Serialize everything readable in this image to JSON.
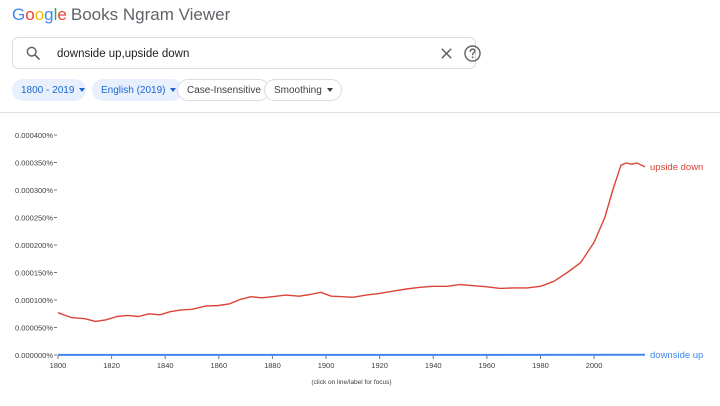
{
  "app": {
    "logo_letters": [
      {
        "ch": "G",
        "color": "#4285f4"
      },
      {
        "ch": "o",
        "color": "#ea4335"
      },
      {
        "ch": "o",
        "color": "#fbbc05"
      },
      {
        "ch": "g",
        "color": "#4285f4"
      },
      {
        "ch": "l",
        "color": "#34a853"
      },
      {
        "ch": "e",
        "color": "#ea4335"
      }
    ],
    "title_suffix": "Books Ngram Viewer"
  },
  "search": {
    "value": "downside up,upside down",
    "icon": "search-icon",
    "clear_icon": "close-icon",
    "help_icon": "help-circle-icon"
  },
  "filters": {
    "years": "1800 - 2019",
    "corpus": "English (2019)",
    "case": "Case-Insensitive",
    "smoothing": "Smoothing"
  },
  "chart_data": {
    "type": "line",
    "xlim": [
      1800,
      2019
    ],
    "ylim": [
      0,
      0.0004
    ],
    "x_ticks": [
      1800,
      1820,
      1840,
      1860,
      1880,
      1900,
      1920,
      1940,
      1960,
      1980,
      2000
    ],
    "y_ticks": [
      {
        "value": 0.0,
        "label": "0.000000%"
      },
      {
        "value": 5e-05,
        "label": "0.000050%"
      },
      {
        "value": 0.0001,
        "label": "0.000100%"
      },
      {
        "value": 0.00015,
        "label": "0.000150%"
      },
      {
        "value": 0.0002,
        "label": "0.000200%"
      },
      {
        "value": 0.00025,
        "label": "0.000250%"
      },
      {
        "value": 0.0003,
        "label": "0.000300%"
      },
      {
        "value": 0.00035,
        "label": "0.000350%"
      },
      {
        "value": 0.0004,
        "label": "0.000400%"
      }
    ],
    "footnote": "(click on line/label for focus)",
    "series": [
      {
        "name": "upside down",
        "color": "#db4437",
        "points": [
          [
            1800,
            7.7e-05
          ],
          [
            1805,
            6.8e-05
          ],
          [
            1810,
            6.6e-05
          ],
          [
            1814,
            6.1e-05
          ],
          [
            1818,
            6.4e-05
          ],
          [
            1822,
            7e-05
          ],
          [
            1826,
            7.2e-05
          ],
          [
            1830,
            7e-05
          ],
          [
            1834,
            7.5e-05
          ],
          [
            1838,
            7.3e-05
          ],
          [
            1842,
            7.9e-05
          ],
          [
            1846,
            8.2e-05
          ],
          [
            1850,
            8.3e-05
          ],
          [
            1855,
            8.9e-05
          ],
          [
            1860,
            9e-05
          ],
          [
            1864,
            9.3e-05
          ],
          [
            1868,
            0.000101
          ],
          [
            1872,
            0.000106
          ],
          [
            1876,
            0.000104
          ],
          [
            1880,
            0.000106
          ],
          [
            1885,
            0.000109
          ],
          [
            1890,
            0.000107
          ],
          [
            1894,
            0.00011
          ],
          [
            1898,
            0.000114
          ],
          [
            1902,
            0.000107
          ],
          [
            1906,
            0.000106
          ],
          [
            1910,
            0.000105
          ],
          [
            1915,
            0.000109
          ],
          [
            1920,
            0.000112
          ],
          [
            1925,
            0.000116
          ],
          [
            1930,
            0.00012
          ],
          [
            1935,
            0.000123
          ],
          [
            1940,
            0.000125
          ],
          [
            1945,
            0.000125
          ],
          [
            1950,
            0.000128
          ],
          [
            1955,
            0.000126
          ],
          [
            1960,
            0.000124
          ],
          [
            1965,
            0.000121
          ],
          [
            1970,
            0.000122
          ],
          [
            1975,
            0.000122
          ],
          [
            1980,
            0.000125
          ],
          [
            1985,
            0.000134
          ],
          [
            1990,
            0.00015
          ],
          [
            1995,
            0.000168
          ],
          [
            2000,
            0.000205
          ],
          [
            2004,
            0.00025
          ],
          [
            2007,
            0.0003
          ],
          [
            2010,
            0.000345
          ],
          [
            2012,
            0.000349
          ],
          [
            2014,
            0.000347
          ],
          [
            2016,
            0.000349
          ],
          [
            2019,
            0.000342
          ]
        ]
      },
      {
        "name": "downside up",
        "color": "#4285f4",
        "points": [
          [
            1800,
            2e-07
          ],
          [
            1900,
            2e-07
          ],
          [
            2019,
            4e-07
          ]
        ]
      }
    ]
  }
}
